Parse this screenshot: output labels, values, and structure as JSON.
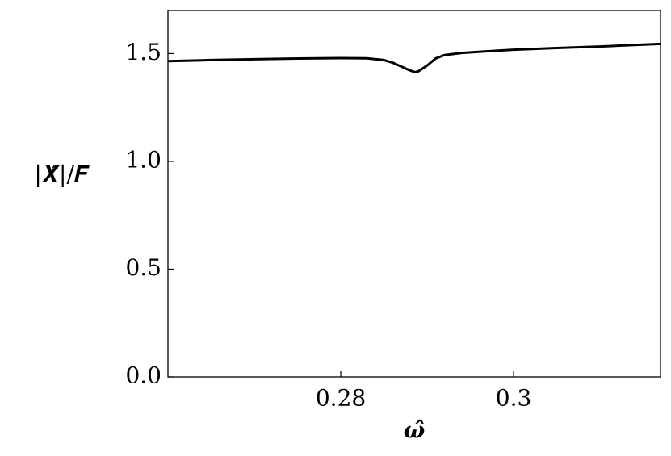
{
  "chart_data": {
    "type": "line",
    "x_label": "ω̂",
    "y_label": "|𝑿̂|/𝑭̂",
    "x": [
      0.26,
      0.265,
      0.27,
      0.275,
      0.28,
      0.283,
      0.285,
      0.286,
      0.287,
      0.288,
      0.2886,
      0.289,
      0.29,
      0.291,
      0.292,
      0.294,
      0.297,
      0.3,
      0.305,
      0.31,
      0.317
    ],
    "values": [
      1.465,
      1.47,
      1.474,
      1.477,
      1.479,
      1.478,
      1.47,
      1.458,
      1.44,
      1.422,
      1.414,
      1.418,
      1.445,
      1.478,
      1.493,
      1.503,
      1.511,
      1.518,
      1.526,
      1.533,
      1.545
    ],
    "color": "#000000",
    "xlim": [
      0.26,
      0.317
    ],
    "ylim": [
      0,
      1.7
    ],
    "xticks": [
      0.28,
      0.3
    ],
    "xtick_labels_override": null,
    "yticks": [
      {
        "value": 0,
        "label": "0.0"
      },
      0.5,
      {
        "value": 1,
        "label": "1.0"
      },
      {
        "value": 1.5,
        "label": "1.5"
      }
    ],
    "tick_direction": "in"
  }
}
